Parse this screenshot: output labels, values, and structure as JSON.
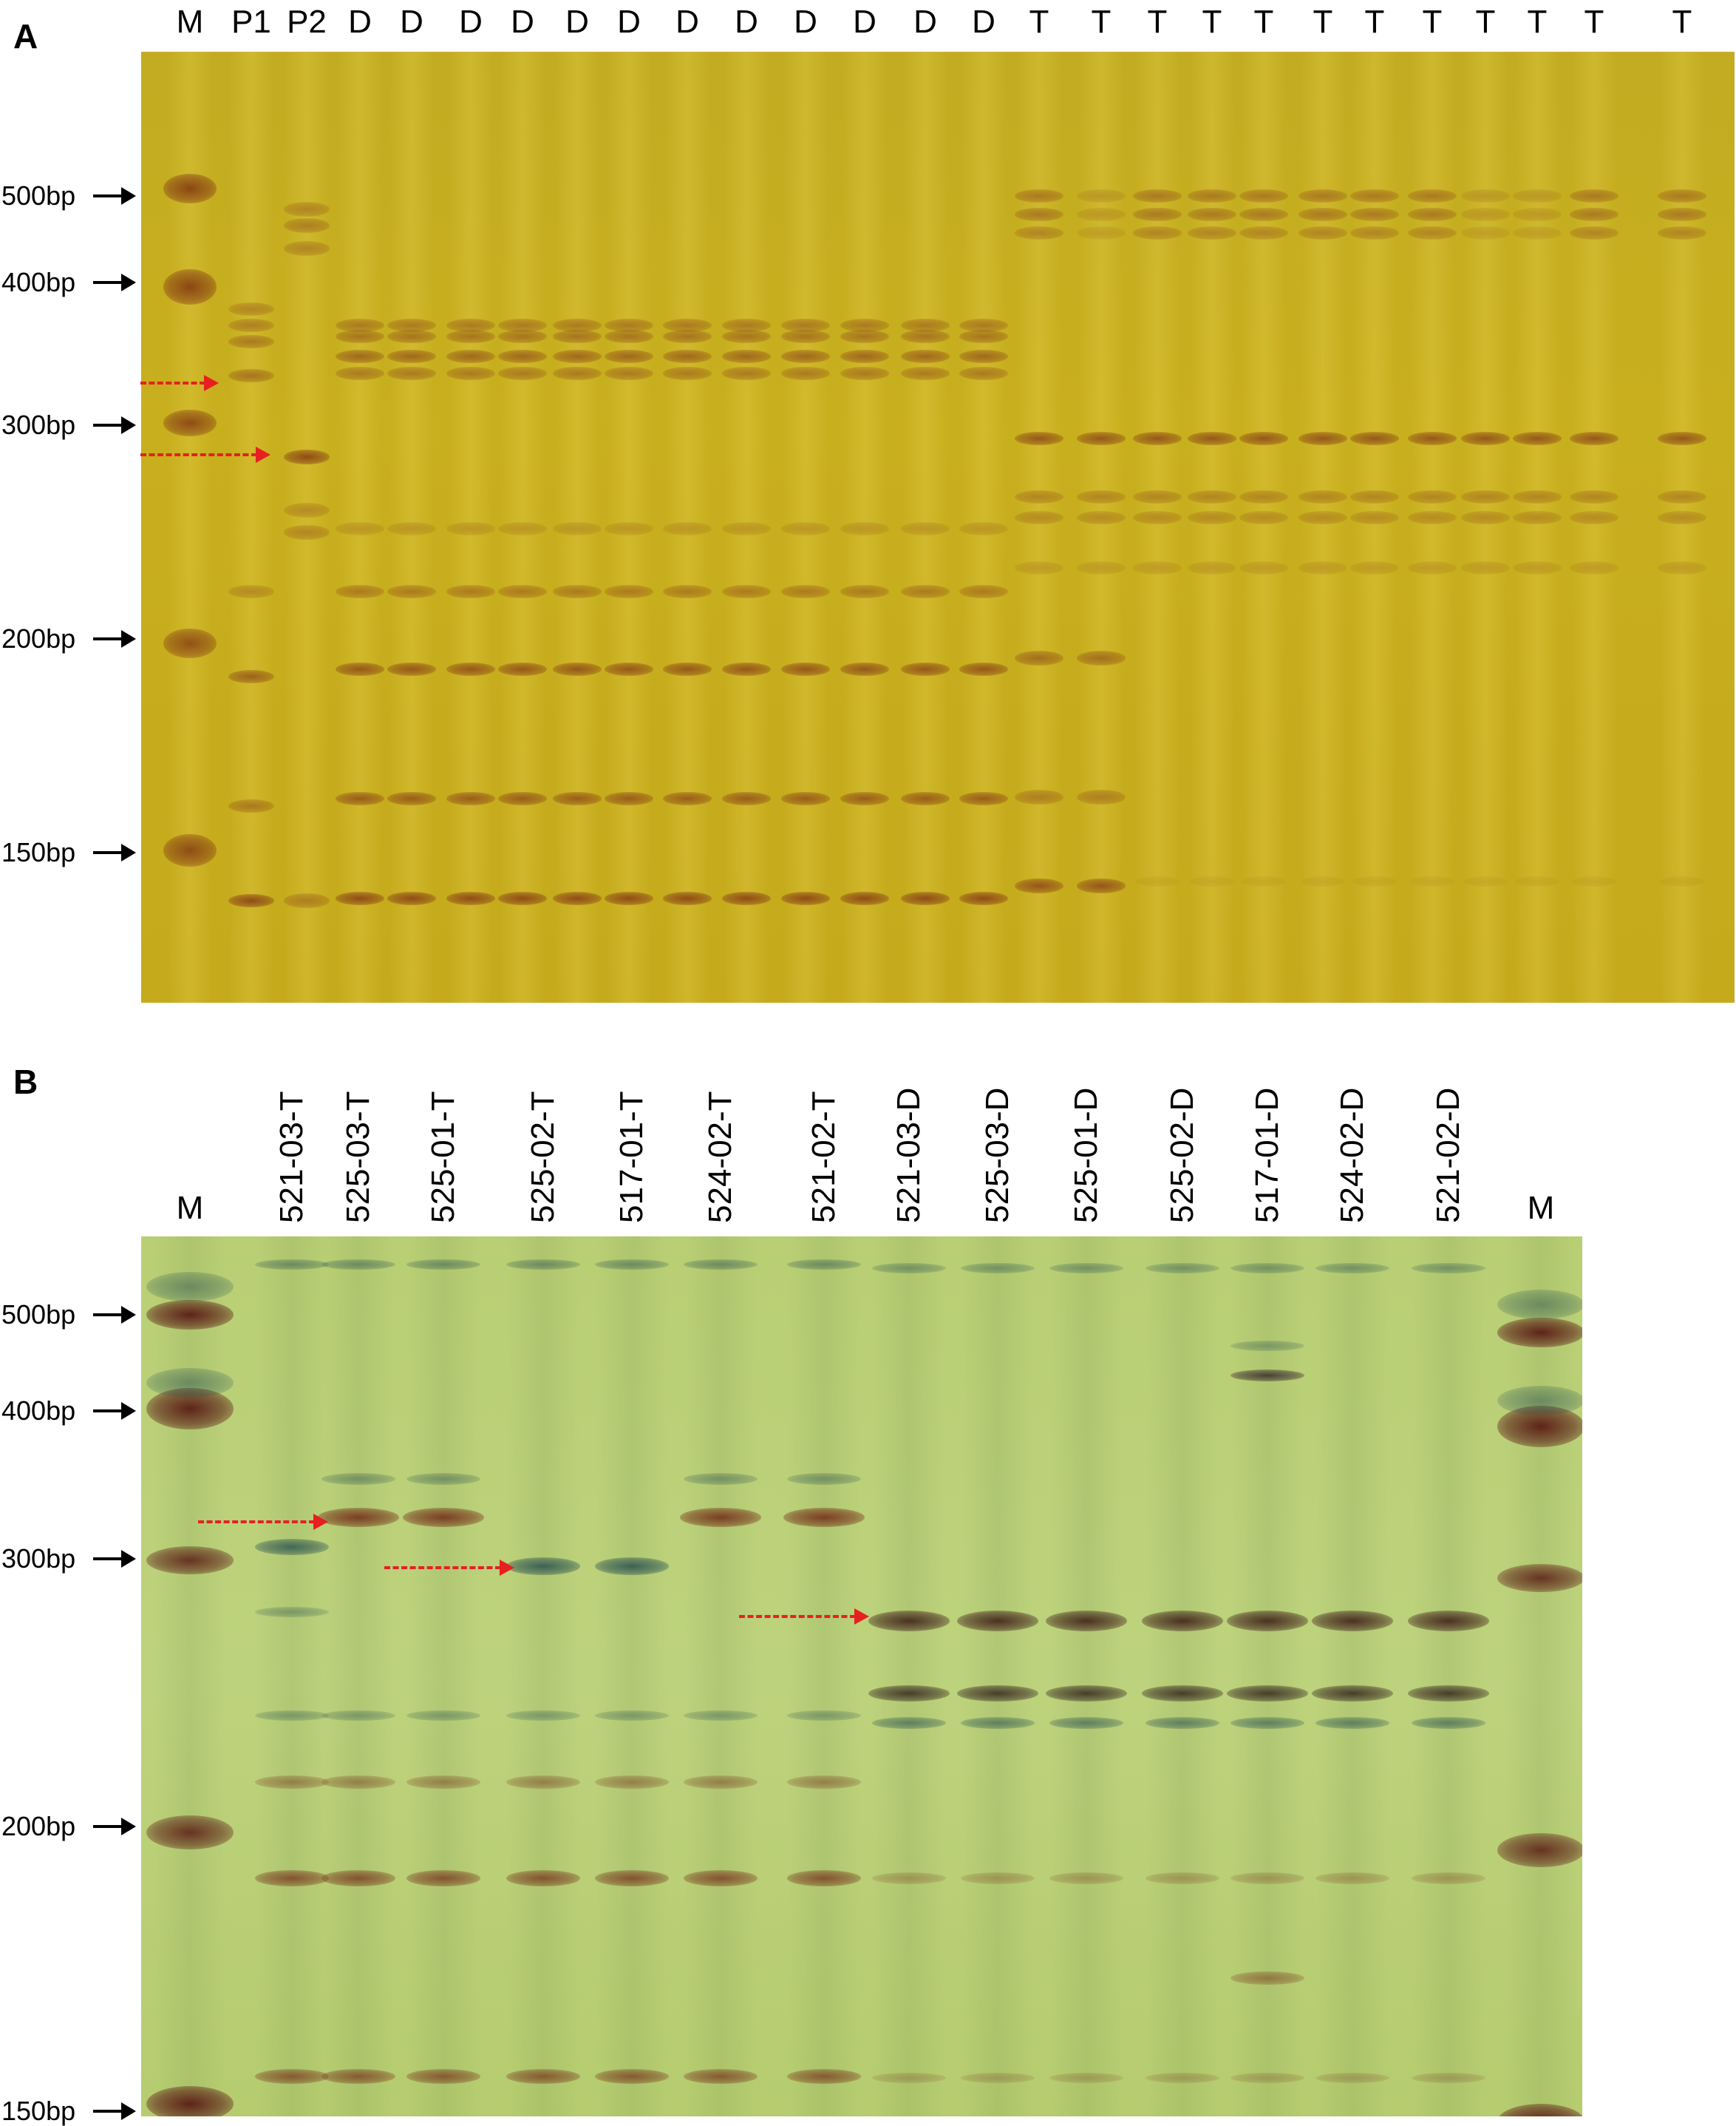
{
  "panel_a": {
    "letter": "A",
    "lanes": [
      "M",
      "P1",
      "P2",
      "D",
      "D",
      "D",
      "D",
      "D",
      "D",
      "D",
      "D",
      "D",
      "D",
      "D",
      "D",
      "T",
      "T",
      "T",
      "T",
      "T",
      "T",
      "T",
      "T",
      "T",
      "T",
      "T",
      "T"
    ],
    "markers": [
      "500bp",
      "400bp",
      "300bp",
      "200bp",
      "150bp"
    ],
    "gel_color": "#c6ad1f",
    "band_color": "#a8641a"
  },
  "panel_b": {
    "letter": "B",
    "lanes": [
      "M",
      "521-03-T",
      "525-03-T",
      "525-01-T",
      "525-02-T",
      "517-01-T",
      "524-02-T",
      "521-02-T",
      "521-03-D",
      "525-03-D",
      "525-01-D",
      "525-02-D",
      "517-01-D",
      "524-02-D",
      "521-02-D",
      "M"
    ],
    "markers": [
      "500bp",
      "400bp",
      "300bp",
      "200bp",
      "150bp"
    ],
    "gel_color": "#bcd178",
    "band_color": "#7a4a2a"
  },
  "arrow_color": "#e62020"
}
